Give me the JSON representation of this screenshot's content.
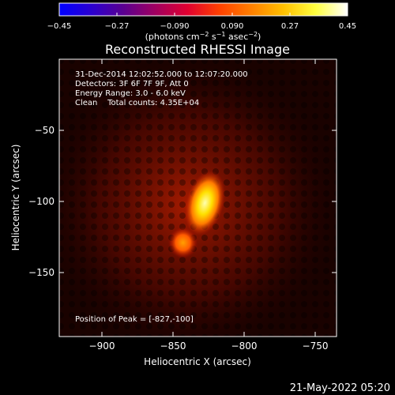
{
  "chart_data": {
    "type": "heatmap",
    "title": "Reconstructed RHESSI Image",
    "xlabel": "Heliocentric X (arcsec)",
    "ylabel": "Heliocentric Y (arcsec)",
    "xlim": [
      -930,
      -735
    ],
    "ylim": [
      -195,
      0
    ],
    "x_ticks": [
      -900,
      -850,
      -800,
      -750
    ],
    "x_tick_labels": [
      "−900",
      "−850",
      "−800",
      "−750"
    ],
    "y_ticks": [
      -50,
      -100,
      -150
    ],
    "y_tick_labels": [
      "−50",
      "−100",
      "−150"
    ],
    "colorbar": {
      "min": -0.45,
      "max": 0.45,
      "ticks": [
        -0.45,
        -0.27,
        -0.09,
        0.09,
        0.27,
        0.45
      ],
      "tick_labels": [
        "−0.45",
        "−0.27",
        "−0.090",
        "0.090",
        "0.27",
        "0.45"
      ],
      "unit_main": "(photons cm",
      "unit_exp1": "−2",
      "unit_mid1": " s",
      "unit_exp2": "−1",
      "unit_mid2": " asec",
      "unit_exp3": "−2",
      "unit_close": ")",
      "colors": [
        "#0000ff",
        "#2a00d0",
        "#5a0090",
        "#a00060",
        "#e00030",
        "#ff4000",
        "#ff8000",
        "#ffc000",
        "#ffff40",
        "#ffffff"
      ]
    },
    "sources": [
      {
        "x": -827,
        "y": -100,
        "peak": 0.45
      },
      {
        "x": -843,
        "y": -129,
        "peak": 0.3
      }
    ],
    "annotations": [
      "31-Dec-2014 12:02:52.000 to 12:07:20.000",
      "Detectors: 3F 6F 7F 9F, Att 0",
      "Energy Range: 3.0 - 6.0 keV",
      "Clean    Total counts: 4.35E+04"
    ],
    "peak_label": "Position of Peak = [-827,-100]",
    "timestamp": "21-May-2022 05:20"
  }
}
